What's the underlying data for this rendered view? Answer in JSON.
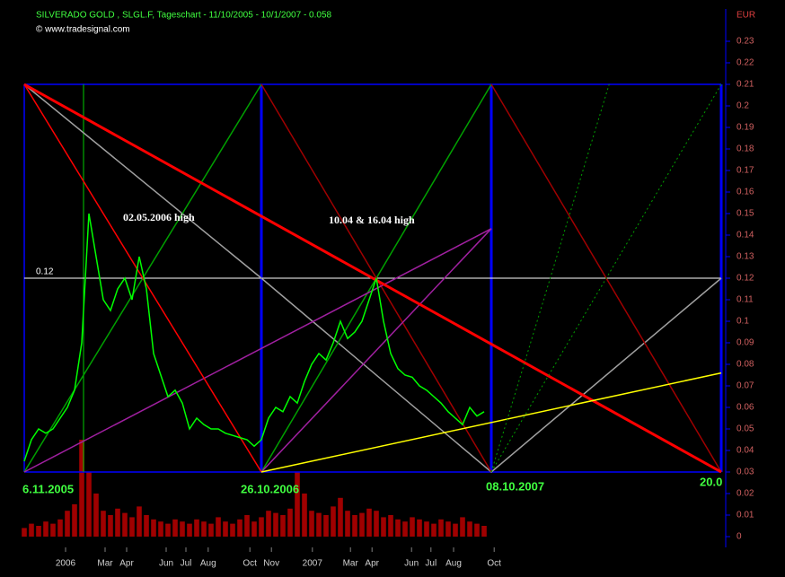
{
  "chart_data": {
    "type": "line",
    "title": "SILVERADO GOLD   , SLGL.F, Tageschart - 11/10/2005 - 10/1/2007 - 0.058",
    "subtitle": "© www.tradesignal.com",
    "y_axis_label": "EUR",
    "annotations": [
      "02.05.2006 high",
      "10.04 & 16.04 high",
      "6.11.2005",
      "26.10.2006",
      "08.10.2007",
      "20.0"
    ],
    "level_label": "0.12",
    "level": 0.12,
    "ylim": [
      0,
      0.24
    ],
    "yticks": [
      0,
      0.01,
      0.02,
      0.03,
      0.04,
      0.05,
      0.06,
      0.07,
      0.08,
      0.09,
      0.1,
      0.11,
      0.12,
      0.13,
      0.14,
      0.15,
      0.16,
      0.17,
      0.18,
      0.19,
      0.2,
      0.21,
      0.22,
      0.23
    ],
    "xlim": [
      0,
      97
    ],
    "xticks": [
      {
        "value": 5.75,
        "label": "2006"
      },
      {
        "value": 11.25,
        "label": "Mar"
      },
      {
        "value": 14.25,
        "label": "Apr"
      },
      {
        "value": 19.75,
        "label": "Jun"
      },
      {
        "value": 22.5,
        "label": "Jul"
      },
      {
        "value": 25.6,
        "label": "Aug"
      },
      {
        "value": 31.4,
        "label": "Oct"
      },
      {
        "value": 34.4,
        "label": "Nov"
      },
      {
        "value": 40.1,
        "label": "2007"
      },
      {
        "value": 45.4,
        "label": "Mar"
      },
      {
        "value": 48.4,
        "label": "Apr"
      },
      {
        "value": 53.9,
        "label": "Jun"
      },
      {
        "value": 56.6,
        "label": "Jul"
      },
      {
        "value": 59.75,
        "label": "Aug"
      },
      {
        "value": 65.4,
        "label": "Oct"
      }
    ],
    "series": [
      {
        "color": "#00ff00",
        "values": [
          0.035,
          0.045,
          0.05,
          0.048,
          0.05,
          0.055,
          0.06,
          0.068,
          0.09,
          0.15,
          0.13,
          0.11,
          0.105,
          0.115,
          0.12,
          0.11,
          0.13,
          0.115,
          0.085,
          0.075,
          0.065,
          0.068,
          0.062,
          0.05,
          0.055,
          0.052,
          0.05,
          0.05,
          0.048,
          0.047,
          0.046,
          0.045,
          0.042,
          0.045,
          0.055,
          0.06,
          0.058,
          0.065,
          0.062,
          0.072,
          0.08,
          0.085,
          0.082,
          0.09,
          0.1,
          0.092,
          0.095,
          0.1,
          0.11,
          0.12,
          0.1,
          0.085,
          0.078,
          0.075,
          0.074,
          0.07,
          0.068,
          0.065,
          0.062,
          0.058,
          0.055,
          0.052,
          0.06,
          0.056,
          0.058
        ]
      },
      {
        "color": "#a00000",
        "kind": "volume",
        "values": [
          0.004,
          0.006,
          0.005,
          0.007,
          0.006,
          0.008,
          0.012,
          0.015,
          0.045,
          0.03,
          0.02,
          0.012,
          0.01,
          0.013,
          0.011,
          0.009,
          0.014,
          0.01,
          0.008,
          0.007,
          0.006,
          0.008,
          0.007,
          0.006,
          0.008,
          0.007,
          0.006,
          0.009,
          0.007,
          0.006,
          0.008,
          0.01,
          0.007,
          0.009,
          0.012,
          0.011,
          0.01,
          0.013,
          0.03,
          0.02,
          0.012,
          0.011,
          0.01,
          0.014,
          0.018,
          0.012,
          0.01,
          0.011,
          0.013,
          0.012,
          0.009,
          0.01,
          0.008,
          0.007,
          0.009,
          0.008,
          0.007,
          0.006,
          0.008,
          0.007,
          0.006,
          0.009,
          0.007,
          0.006,
          0.005
        ]
      }
    ],
    "drawings": [
      {
        "color": "#0000ff",
        "style": "normal",
        "points": [
          [
            0,
            0.21
          ],
          [
            97,
            0.21
          ]
        ]
      },
      {
        "color": "#0000ff",
        "style": "normal",
        "points": [
          [
            0,
            0.03
          ],
          [
            97,
            0.03
          ]
        ]
      },
      {
        "color": "#0000ff",
        "style": "normal",
        "points": [
          [
            0,
            0.03
          ],
          [
            0,
            0.21
          ]
        ]
      },
      {
        "color": "#0000ff",
        "style": "thick",
        "points": [
          [
            33,
            0.03
          ],
          [
            33,
            0.21
          ]
        ]
      },
      {
        "color": "#0000ff",
        "style": "thick",
        "points": [
          [
            65,
            0.03
          ],
          [
            65,
            0.21
          ]
        ]
      },
      {
        "color": "#0000ff",
        "style": "thick",
        "points": [
          [
            97,
            0.03
          ],
          [
            97,
            0.21
          ]
        ]
      },
      {
        "color": "#00cc00",
        "style": "thin",
        "points": [
          [
            8.25,
            0.03
          ],
          [
            8.25,
            0.21
          ]
        ]
      },
      {
        "color": "#ffffff",
        "style": "thin",
        "points": [
          [
            0,
            0.12
          ],
          [
            97,
            0.12
          ]
        ]
      },
      {
        "color": "#a0a0a0",
        "style": "normal",
        "points": [
          [
            0,
            0.21
          ],
          [
            33,
            0.12
          ],
          [
            65,
            0.03
          ],
          [
            97,
            0.12
          ]
        ]
      },
      {
        "color": "#00a000",
        "style": "normal",
        "points": [
          [
            0,
            0.03
          ],
          [
            33,
            0.21
          ]
        ]
      },
      {
        "color": "#00a000",
        "style": "normal",
        "points": [
          [
            33,
            0.03
          ],
          [
            65,
            0.21
          ]
        ]
      },
      {
        "color": "#a00000",
        "style": "normal",
        "points": [
          [
            33,
            0.21
          ],
          [
            65,
            0.03
          ]
        ]
      },
      {
        "color": "#a00000",
        "style": "normal",
        "points": [
          [
            65,
            0.21
          ],
          [
            97,
            0.03
          ]
        ]
      },
      {
        "color": "#a020a0",
        "style": "normal",
        "points": [
          [
            0,
            0.03
          ],
          [
            65,
            0.143
          ]
        ]
      },
      {
        "color": "#a020a0",
        "style": "normal",
        "points": [
          [
            33,
            0.03
          ],
          [
            65,
            0.143
          ]
        ]
      },
      {
        "color": "#ff0000",
        "style": "normal",
        "points": [
          [
            0,
            0.21
          ],
          [
            33,
            0.03
          ]
        ]
      },
      {
        "color": "#ff0000",
        "style": "thick",
        "points": [
          [
            0,
            0.21
          ],
          [
            97,
            0.03
          ]
        ]
      },
      {
        "color": "#ffff00",
        "style": "normal",
        "points": [
          [
            33,
            0.03
          ],
          [
            97,
            0.076
          ]
        ]
      },
      {
        "color": "#00a000",
        "style": "dashed",
        "points": [
          [
            65,
            0.03
          ],
          [
            81.4,
            0.21
          ]
        ]
      },
      {
        "color": "#00a000",
        "style": "dashed",
        "points": [
          [
            65,
            0.03
          ],
          [
            97,
            0.21
          ]
        ]
      }
    ]
  }
}
